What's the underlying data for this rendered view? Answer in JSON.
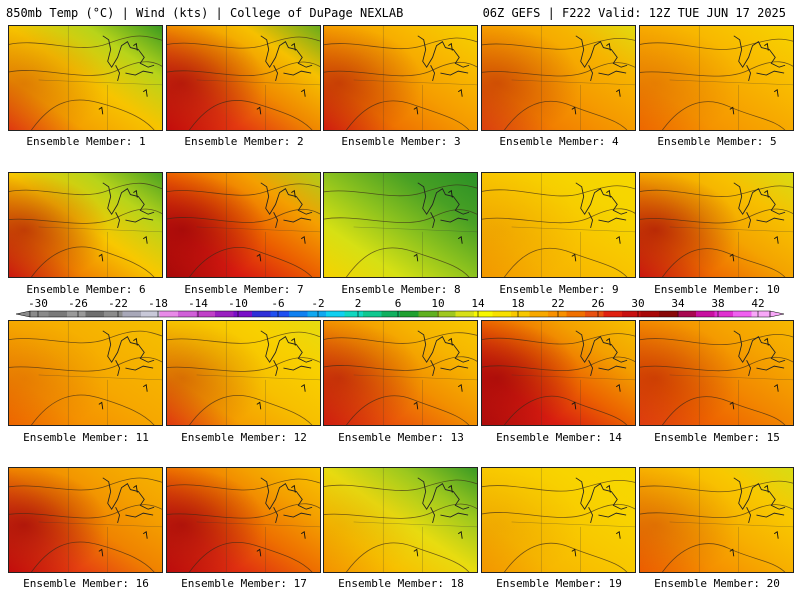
{
  "header": {
    "left": "850mb Temp (°C) | Wind (kts) | College of DuPage NEXLAB",
    "right": "06Z GEFS | F222 Valid: 12Z TUE JUN 17 2025"
  },
  "colorbar": {
    "ticks": [
      "-30",
      "-26",
      "-22",
      "-18",
      "-14",
      "-10",
      "-6",
      "-2",
      "2",
      "6",
      "10",
      "14",
      "18",
      "22",
      "26",
      "30",
      "34",
      "38",
      "42"
    ],
    "colors": [
      "#8a8a8a",
      "#7a7a7a",
      "#9a9a9a",
      "#6f6f6f",
      "#8c8c8c",
      "#a8a8b8",
      "#c8c8d8",
      "#e88ae8",
      "#d060d8",
      "#c040c8",
      "#9a20c0",
      "#7a10c8",
      "#3030d8",
      "#2050f0",
      "#1080f0",
      "#10a8f0",
      "#10d0f0",
      "#10d8c0",
      "#10c890",
      "#10b060",
      "#20a030",
      "#60b020",
      "#a0c820",
      "#d8e018",
      "#f8f800",
      "#f8e000",
      "#f8c800",
      "#f8a800",
      "#f89000",
      "#f07000",
      "#e85010",
      "#e02010",
      "#c81010",
      "#a80808",
      "#880808",
      "#a80850",
      "#c810a0",
      "#e030d0",
      "#f060f0",
      "#f8a8f8"
    ]
  },
  "panels": [
    {
      "label": "Ensemble Member: 1",
      "grad": [
        "#e23a10",
        "#f4a100",
        "#f7c400",
        "#b8d41a",
        "#3a9a20"
      ],
      "warm_strength": 0.3
    },
    {
      "label": "Ensemble Member: 2",
      "grad": [
        "#c80c0c",
        "#e43a10",
        "#f08a00",
        "#f6c000",
        "#6aac1c"
      ],
      "warm_strength": 0.8
    },
    {
      "label": "Ensemble Member: 3",
      "grad": [
        "#d41e10",
        "#ef7400",
        "#f59c00",
        "#f8b800",
        "#f4d200"
      ],
      "warm_strength": 0.6
    },
    {
      "label": "Ensemble Member: 4",
      "grad": [
        "#e04410",
        "#f28000",
        "#f59c00",
        "#f6b400",
        "#e2da10"
      ],
      "warm_strength": 0.5
    },
    {
      "label": "Ensemble Member: 5",
      "grad": [
        "#f06a00",
        "#f59400",
        "#f7aa00",
        "#f8c000",
        "#f6d400"
      ],
      "warm_strength": 0.2
    },
    {
      "label": "Ensemble Member: 6",
      "grad": [
        "#d01810",
        "#f08400",
        "#f8c800",
        "#b8d41a",
        "#4aa222"
      ],
      "warm_strength": 0.7
    },
    {
      "label": "Ensemble Member: 7",
      "grad": [
        "#a80808",
        "#d81a10",
        "#ec6000",
        "#f4a000",
        "#b0cc1a"
      ],
      "warm_strength": 1.0
    },
    {
      "label": "Ensemble Member: 8",
      "grad": [
        "#f6d200",
        "#d6e014",
        "#8cc21e",
        "#48a024",
        "#2a9026"
      ],
      "warm_strength": 0.0
    },
    {
      "label": "Ensemble Member: 9",
      "grad": [
        "#f49a00",
        "#f7b400",
        "#f8c400",
        "#f6d400",
        "#f6d800"
      ],
      "warm_strength": 0.1
    },
    {
      "label": "Ensemble Member: 10",
      "grad": [
        "#d01810",
        "#ee6c00",
        "#f4a400",
        "#f7c000",
        "#d8dc14"
      ],
      "warm_strength": 0.8
    },
    {
      "label": "Ensemble Member: 11",
      "grad": [
        "#f06800",
        "#f59200",
        "#f6a800",
        "#f6b400",
        "#f4c000"
      ],
      "warm_strength": 0.2
    },
    {
      "label": "Ensemble Member: 12",
      "grad": [
        "#e43a10",
        "#f5a000",
        "#f7c000",
        "#f8d000",
        "#e6dc10"
      ],
      "warm_strength": 0.4
    },
    {
      "label": "Ensemble Member: 13",
      "grad": [
        "#d41e10",
        "#ea5808",
        "#f29000",
        "#f6b400",
        "#f8c800"
      ],
      "warm_strength": 0.6
    },
    {
      "label": "Ensemble Member: 14",
      "grad": [
        "#b00c0c",
        "#d81c10",
        "#ec6400",
        "#f3a000",
        "#f6c000"
      ],
      "warm_strength": 0.9
    },
    {
      "label": "Ensemble Member: 15",
      "grad": [
        "#e44010",
        "#ee6400",
        "#f28800",
        "#f5a400",
        "#f6b800"
      ],
      "warm_strength": 0.5
    },
    {
      "label": "Ensemble Member: 16",
      "grad": [
        "#c80c0c",
        "#e64210",
        "#f08400",
        "#f4a000",
        "#f6b400"
      ],
      "warm_strength": 0.9
    },
    {
      "label": "Ensemble Member: 17",
      "grad": [
        "#c00c0c",
        "#e03010",
        "#ee7000",
        "#f4a000",
        "#f7c400"
      ],
      "warm_strength": 0.9
    },
    {
      "label": "Ensemble Member: 18",
      "grad": [
        "#f59400",
        "#f7c000",
        "#e8dc10",
        "#9cc81e",
        "#3a9a24"
      ],
      "warm_strength": 0.1
    },
    {
      "label": "Ensemble Member: 19",
      "grad": [
        "#f49800",
        "#f7b800",
        "#f8c800",
        "#f8d400",
        "#f6d800"
      ],
      "warm_strength": 0.1
    },
    {
      "label": "Ensemble Member: 20",
      "grad": [
        "#f06000",
        "#f59000",
        "#f7b000",
        "#f8c800",
        "#d8dc14"
      ],
      "warm_strength": 0.3
    }
  ]
}
